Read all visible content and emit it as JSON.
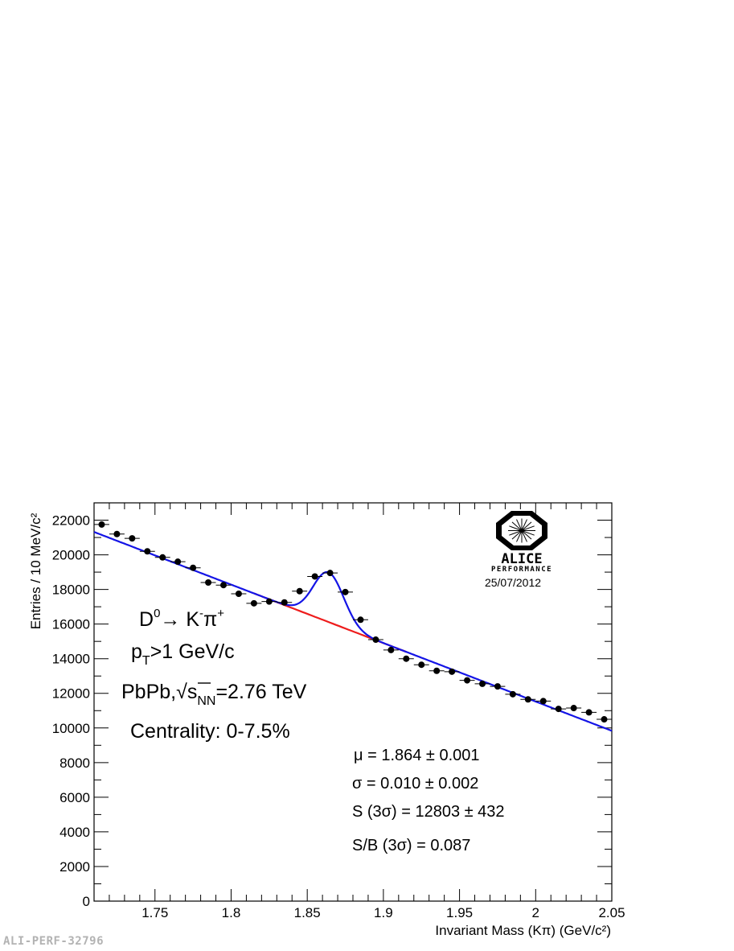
{
  "chart_data": {
    "type": "scatter",
    "xlabel": "Invariant Mass (Kπ) (GeV/c²)",
    "ylabel": "Entries / 10 MeV/c²",
    "xlim": [
      1.71,
      2.05
    ],
    "ylim": [
      0,
      23000
    ],
    "xticks": [
      "1.75",
      "1.8",
      "1.85",
      "1.9",
      "1.95",
      "2",
      "2.05"
    ],
    "yticks": [
      "0",
      "2000",
      "4000",
      "6000",
      "8000",
      "10000",
      "12000",
      "14000",
      "16000",
      "18000",
      "20000",
      "22000"
    ],
    "grid": false,
    "points": [
      {
        "x": 1.715,
        "y": 21750
      },
      {
        "x": 1.725,
        "y": 21200
      },
      {
        "x": 1.735,
        "y": 20950
      },
      {
        "x": 1.745,
        "y": 20200
      },
      {
        "x": 1.755,
        "y": 19850
      },
      {
        "x": 1.765,
        "y": 19600
      },
      {
        "x": 1.775,
        "y": 19250
      },
      {
        "x": 1.785,
        "y": 18400
      },
      {
        "x": 1.795,
        "y": 18250
      },
      {
        "x": 1.805,
        "y": 17750
      },
      {
        "x": 1.815,
        "y": 17200
      },
      {
        "x": 1.825,
        "y": 17300
      },
      {
        "x": 1.835,
        "y": 17250
      },
      {
        "x": 1.845,
        "y": 17900
      },
      {
        "x": 1.855,
        "y": 18750
      },
      {
        "x": 1.865,
        "y": 18950
      },
      {
        "x": 1.875,
        "y": 17850
      },
      {
        "x": 1.885,
        "y": 16250
      },
      {
        "x": 1.895,
        "y": 15100
      },
      {
        "x": 1.905,
        "y": 14500
      },
      {
        "x": 1.915,
        "y": 14000
      },
      {
        "x": 1.925,
        "y": 13650
      },
      {
        "x": 1.935,
        "y": 13300
      },
      {
        "x": 1.945,
        "y": 13250
      },
      {
        "x": 1.955,
        "y": 12750
      },
      {
        "x": 1.965,
        "y": 12550
      },
      {
        "x": 1.975,
        "y": 12400
      },
      {
        "x": 1.985,
        "y": 11950
      },
      {
        "x": 1.995,
        "y": 11650
      },
      {
        "x": 2.005,
        "y": 11550
      },
      {
        "x": 2.015,
        "y": 11100
      },
      {
        "x": 2.025,
        "y": 11150
      },
      {
        "x": 2.035,
        "y": 10900
      },
      {
        "x": 2.045,
        "y": 10500
      }
    ],
    "fit": {
      "signal_mean": 1.864,
      "signal_sigma": 0.01,
      "color": "#1414e6",
      "background_color": "#ee1c1c"
    }
  },
  "annotations": {
    "decay_d": "D",
    "decay_d_sup": "0",
    "decay_arrow": "→ K",
    "decay_k_sup": "-",
    "decay_pi": "π",
    "decay_pi_sup": "+",
    "pt_p": "p",
    "pt_sub": "T",
    "pt_rest": ">1 GeV/c",
    "coll_a": "PbPb,",
    "coll_sqrt": "√",
    "coll_s": "s",
    "coll_sub": "NN",
    "coll_rest": "=2.76 TeV",
    "centrality": "Centrality: 0-7.5%",
    "mu": "μ = 1.864 ± 0.001",
    "sigma": "σ = 0.010 ± 0.002",
    "signal": "S (3σ) = 12803 ± 432",
    "sb": "S/B (3σ) = 0.087"
  },
  "logo": {
    "name": "ALICE",
    "sub": "PERFORMANCE",
    "date": "25/07/2012"
  },
  "figure_id": "ALI-PERF-32796",
  "colors": {
    "fit_total": "#1414e6",
    "fit_background": "#ee1c1c",
    "points": "#000000"
  }
}
